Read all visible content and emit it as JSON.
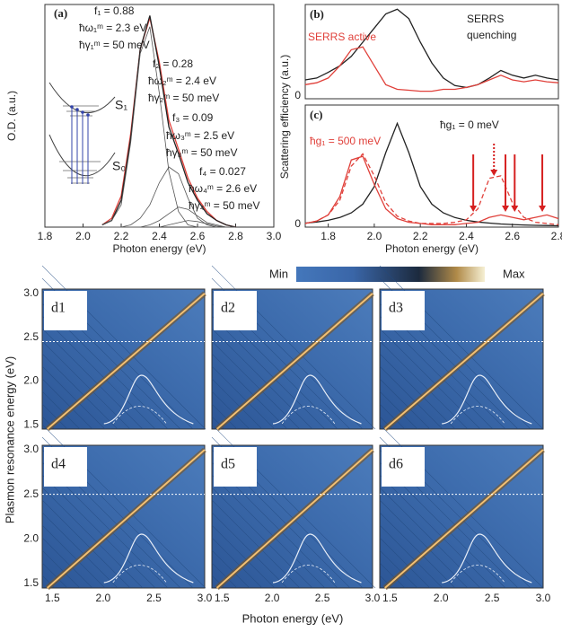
{
  "chart_data": [
    {
      "type": "line",
      "panel_label": "(a)",
      "xlabel": "Photon energy (eV)",
      "ylabel": "O.D. (a.u.)",
      "xlim": [
        1.8,
        3.0
      ],
      "xticks": [
        1.8,
        {
          "value": 2,
          "label": "2.0"
        },
        2.2,
        2.4,
        2.6,
        2.8,
        {
          "value": 3,
          "label": "3.0"
        }
      ],
      "ylim": [
        0,
        1
      ],
      "x": [
        2.1,
        2.15,
        2.2,
        2.25,
        2.3,
        2.35,
        2.4,
        2.45,
        2.5,
        2.55,
        2.6,
        2.65,
        2.7,
        2.75,
        2.8
      ],
      "series": [
        {
          "color": "#e0403a",
          "values": [
            0.01,
            0.04,
            0.14,
            0.42,
            0.8,
            0.94,
            0.74,
            0.48,
            0.35,
            0.22,
            0.13,
            0.07,
            0.03,
            0.01,
            0
          ]
        },
        {
          "color": "#222222",
          "values": [
            0.01,
            0.03,
            0.12,
            0.4,
            0.8,
            0.95,
            0.72,
            0.45,
            0.33,
            0.2,
            0.12,
            0.06,
            0.03,
            0.01,
            0
          ]
        },
        {
          "color": "#555555",
          "values": [
            0.01,
            0.03,
            0.1,
            0.38,
            0.78,
            0.9,
            0.6,
            0.25,
            0.07,
            0.01,
            0,
            0,
            0,
            0,
            0
          ]
        },
        {
          "color": "#555555",
          "values": [
            0,
            0,
            0,
            0.01,
            0.04,
            0.1,
            0.2,
            0.27,
            0.24,
            0.13,
            0.04,
            0.01,
            0,
            0,
            0
          ]
        },
        {
          "color": "#555555",
          "values": [
            0,
            0,
            0,
            0,
            0,
            0.01,
            0.03,
            0.06,
            0.09,
            0.08,
            0.05,
            0.02,
            0.01,
            0,
            0
          ]
        },
        {
          "color": "#555555",
          "values": [
            0,
            0,
            0,
            0,
            0,
            0,
            0,
            0.01,
            0.02,
            0.03,
            0.025,
            0.015,
            0.005,
            0,
            0
          ]
        }
      ],
      "annotations": [
        "f₁ = 0.88",
        "ħω₁ᵐ = 2.3 eV",
        "ħγ₁ᵐ = 50 meV",
        "f₂ = 0.28",
        "ħω₂ᵐ = 2.4 eV",
        "ħγ₂ᵐ = 50 meV",
        "f₃ = 0.09",
        "ħω₃ᵐ = 2.5 eV",
        "ħγ₃ᵐ = 50 meV",
        "f₄ = 0.027",
        "ħω₄ᵐ = 2.6 eV",
        "ħγ₄ᵐ = 50 meV"
      ],
      "inset_labels": [
        "S₁",
        "S₀"
      ]
    },
    {
      "type": "line",
      "panel_label": "(b)",
      "ylabel": "Scattering efficiency (a.u.)",
      "xlim": [
        1.7,
        2.8
      ],
      "ylim": [
        0,
        1
      ],
      "yticks": [
        0
      ],
      "x": [
        1.7,
        1.75,
        1.8,
        1.85,
        1.9,
        1.95,
        2.0,
        2.05,
        2.1,
        2.15,
        2.2,
        2.25,
        2.3,
        2.35,
        2.4,
        2.45,
        2.5,
        2.55,
        2.6,
        2.65,
        2.7,
        2.75,
        2.8
      ],
      "series": [
        {
          "color": "#222222",
          "values": [
            0.2,
            0.22,
            0.28,
            0.35,
            0.45,
            0.6,
            0.75,
            0.9,
            0.95,
            0.85,
            0.6,
            0.38,
            0.22,
            0.14,
            0.12,
            0.15,
            0.22,
            0.3,
            0.25,
            0.22,
            0.25,
            0.22,
            0.2
          ]
        },
        {
          "color": "#e0403a",
          "values": [
            0.15,
            0.17,
            0.22,
            0.35,
            0.52,
            0.55,
            0.35,
            0.15,
            0.1,
            0.09,
            0.08,
            0.08,
            0.1,
            0.1,
            0.12,
            0.15,
            0.2,
            0.25,
            0.2,
            0.18,
            0.2,
            0.18,
            0.17
          ]
        }
      ],
      "annotations": [
        {
          "text": "SERRS active",
          "color": "#e0403a"
        },
        {
          "text": "SERRS",
          "color": "#222222"
        },
        {
          "text": "quenching",
          "color": "#222222"
        }
      ]
    },
    {
      "type": "line",
      "panel_label": "(c)",
      "xlabel": "Photon energy (eV)",
      "xlim": [
        1.7,
        2.8
      ],
      "xticks": [
        1.8,
        {
          "value": 2,
          "label": "2.0"
        },
        2.2,
        2.4,
        2.6,
        2.8
      ],
      "ylim": [
        0,
        1
      ],
      "yticks": [
        0
      ],
      "x": [
        1.7,
        1.75,
        1.8,
        1.85,
        1.9,
        1.95,
        2.0,
        2.05,
        2.1,
        2.15,
        2.2,
        2.25,
        2.3,
        2.35,
        2.4,
        2.45,
        2.5,
        2.55,
        2.6,
        2.65,
        2.7,
        2.75,
        2.8
      ],
      "series": [
        {
          "color": "#222222",
          "values": [
            0.033,
            0.042,
            0.056,
            0.079,
            0.117,
            0.188,
            0.332,
            0.61,
            0.85,
            0.61,
            0.332,
            0.188,
            0.117,
            0.079,
            0.056,
            0.042,
            0.033,
            0.026,
            0.021,
            0.018,
            0.015,
            0.013,
            0.011
          ]
        },
        {
          "color": "#e0403a",
          "values": [
            0.03,
            0.05,
            0.1,
            0.25,
            0.55,
            0.58,
            0.35,
            0.15,
            0.07,
            0.04,
            0.03,
            0.02,
            0.02,
            0.02,
            0.03,
            0.04,
            0.08,
            0.1,
            0.08,
            0.06,
            0.08,
            0.1,
            0.07
          ]
        },
        {
          "color": "#e0403a",
          "dash": true,
          "values": [
            0.03,
            0.05,
            0.1,
            0.22,
            0.5,
            0.6,
            0.42,
            0.2,
            0.09,
            0.05,
            0.03,
            0.03,
            0.03,
            0.04,
            0.06,
            0.15,
            0.4,
            0.42,
            0.2,
            0.08,
            0.04,
            0.03,
            0.02
          ]
        }
      ],
      "annotations": [
        {
          "text": "ħg₁ = 0 meV",
          "color": "#222222"
        },
        {
          "text": "ħg₁ = 500 meV",
          "color": "#e0403a"
        }
      ],
      "arrows": [
        {
          "x": 2.43,
          "dotted": false
        },
        {
          "x": 2.52,
          "dotted": true
        },
        {
          "x": 2.57,
          "dotted": false
        },
        {
          "x": 2.61,
          "dotted": false
        },
        {
          "x": 2.73,
          "dotted": false
        }
      ]
    },
    {
      "type": "heatmap",
      "xlabel": "Photon energy (eV)",
      "ylabel": "Plasmon resonance energy (eV)",
      "colorbar": [
        "Min",
        "Max"
      ],
      "xlim": [
        1.4,
        3.0
      ],
      "xticks": [
        1.5,
        {
          "value": 2,
          "label": "2.0"
        },
        2.5,
        {
          "value": 3,
          "label": "3.0"
        }
      ],
      "ylim": [
        1.45,
        3.05
      ],
      "yticks": [
        1.5,
        {
          "value": 2,
          "label": "2.0"
        },
        2.5,
        {
          "value": 3,
          "label": "3.0"
        }
      ],
      "panels": [
        {
          "label": "d1",
          "dashed_y": 2.45
        },
        {
          "label": "d2",
          "dashed_y": 2.45
        },
        {
          "label": "d3",
          "dashed_y": 2.45
        },
        {
          "label": "d4",
          "dashed_y": 2.5
        },
        {
          "label": "d5",
          "dashed_y": 2.5
        },
        {
          "label": "d6",
          "dashed_y": 2.5
        }
      ]
    }
  ]
}
